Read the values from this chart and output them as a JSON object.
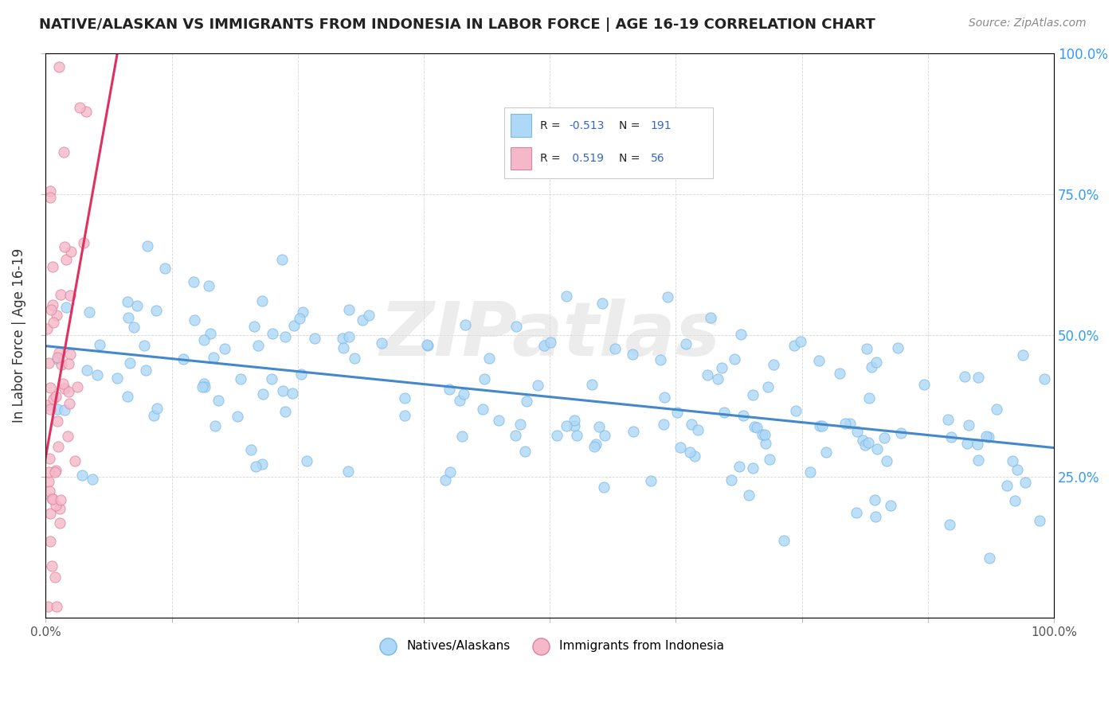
{
  "title": "NATIVE/ALASKAN VS IMMIGRANTS FROM INDONESIA IN LABOR FORCE | AGE 16-19 CORRELATION CHART",
  "source": "Source: ZipAtlas.com",
  "ylabel": "In Labor Force | Age 16-19",
  "yaxis_labels": [
    "25.0%",
    "50.0%",
    "75.0%",
    "100.0%"
  ],
  "yaxis_values": [
    0.25,
    0.5,
    0.75,
    1.0
  ],
  "r_native": -0.513,
  "n_native": 191,
  "r_immigrant": 0.519,
  "n_immigrant": 56,
  "native_color": "#add8f7",
  "native_edge_color": "#7ab8e8",
  "immigrant_color": "#f5b8c8",
  "immigrant_edge_color": "#e080a0",
  "native_line_color": "#4488cc",
  "immigrant_line_color": "#e03060",
  "watermark": "ZIPatlas",
  "background_color": "#ffffff",
  "seed": 99
}
